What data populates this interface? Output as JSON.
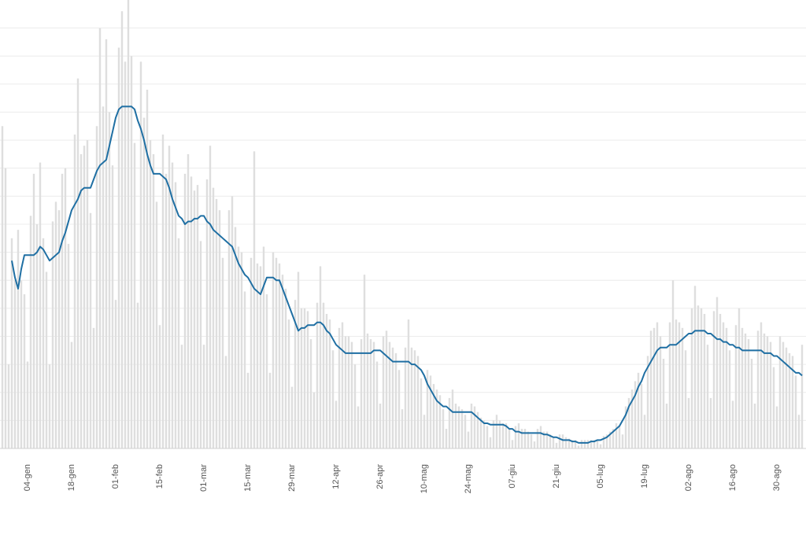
{
  "chart_data": {
    "type": "bar",
    "categories": [
      null,
      null,
      null,
      null,
      null,
      null,
      null,
      null,
      "04-gen",
      null,
      null,
      null,
      null,
      null,
      null,
      null,
      null,
      null,
      null,
      null,
      null,
      null,
      "18-gen",
      null,
      null,
      null,
      null,
      null,
      null,
      null,
      null,
      null,
      null,
      null,
      null,
      null,
      "01-feb",
      null,
      null,
      null,
      null,
      null,
      null,
      null,
      null,
      null,
      null,
      null,
      null,
      null,
      "15-feb",
      null,
      null,
      null,
      null,
      null,
      null,
      null,
      null,
      null,
      null,
      null,
      null,
      null,
      "01-mar",
      null,
      null,
      null,
      null,
      null,
      null,
      null,
      null,
      null,
      null,
      null,
      null,
      null,
      "15-mar",
      null,
      null,
      null,
      null,
      null,
      null,
      null,
      null,
      null,
      null,
      null,
      null,
      null,
      "29-mar",
      null,
      null,
      null,
      null,
      null,
      null,
      null,
      null,
      null,
      null,
      null,
      null,
      null,
      "12-apr",
      null,
      null,
      null,
      null,
      null,
      null,
      null,
      null,
      null,
      null,
      null,
      null,
      null,
      "26-apr",
      null,
      null,
      null,
      null,
      null,
      null,
      null,
      null,
      null,
      null,
      null,
      null,
      null,
      "10-mag",
      null,
      null,
      null,
      null,
      null,
      null,
      null,
      null,
      null,
      null,
      null,
      null,
      null,
      "24-mag",
      null,
      null,
      null,
      null,
      null,
      null,
      null,
      null,
      null,
      null,
      null,
      null,
      null,
      "07-giu",
      null,
      null,
      null,
      null,
      null,
      null,
      null,
      null,
      null,
      null,
      null,
      null,
      null,
      "21-giu",
      null,
      null,
      null,
      null,
      null,
      null,
      null,
      null,
      null,
      null,
      null,
      null,
      null,
      "05-lug",
      null,
      null,
      null,
      null,
      null,
      null,
      null,
      null,
      null,
      null,
      null,
      null,
      null,
      "19-lug",
      null,
      null,
      null,
      null,
      null,
      null,
      null,
      null,
      null,
      null,
      null,
      null,
      null,
      "02-ago",
      null,
      null,
      null,
      null,
      null,
      null,
      null,
      null,
      null,
      null,
      null,
      null,
      null,
      "16-ago",
      null,
      null,
      null,
      null,
      null,
      null,
      null,
      null,
      null,
      null,
      null,
      null,
      null,
      "30-ago",
      null,
      null,
      null,
      null,
      null,
      null,
      null,
      null
    ],
    "series": [
      {
        "type": "bar",
        "color": "#dedede",
        "values": [
          11.5,
          10.0,
          3.0,
          7.5,
          6.0,
          7.8,
          6.0,
          5.5,
          3.1,
          8.3,
          9.8,
          8.0,
          10.2,
          7.5,
          6.3,
          3.0,
          8.1,
          8.8,
          8.5,
          9.8,
          10.0,
          7.3,
          3.8,
          11.2,
          13.2,
          10.5,
          10.8,
          11.0,
          8.4,
          4.3,
          11.5,
          15.0,
          12.2,
          14.6,
          12.0,
          10.1,
          5.3,
          14.3,
          15.6,
          13.8,
          16.5,
          14.0,
          10.9,
          5.2,
          13.8,
          11.8,
          12.8,
          11.0,
          10.5,
          8.8,
          4.4,
          11.2,
          9.8,
          10.8,
          10.2,
          9.5,
          7.5,
          3.7,
          9.8,
          10.5,
          9.7,
          9.2,
          9.4,
          7.4,
          3.7,
          9.6,
          10.8,
          9.3,
          8.9,
          8.5,
          6.8,
          3.3,
          8.5,
          9.0,
          7.9,
          7.2,
          7.0,
          5.6,
          2.7,
          6.8,
          10.6,
          6.6,
          6.5,
          7.2,
          5.5,
          2.7,
          7.0,
          6.8,
          6.6,
          6.2,
          5.7,
          4.6,
          2.2,
          5.3,
          6.3,
          5.0,
          5.0,
          4.9,
          3.9,
          2.0,
          5.2,
          6.5,
          5.2,
          4.8,
          4.6,
          3.5,
          1.7,
          4.3,
          4.5,
          4.0,
          4.0,
          3.8,
          3.0,
          1.5,
          3.9,
          6.2,
          4.1,
          3.9,
          3.8,
          3.1,
          1.6,
          4.0,
          4.2,
          3.8,
          3.6,
          3.4,
          2.8,
          1.4,
          3.6,
          4.6,
          3.6,
          3.5,
          3.3,
          2.5,
          1.2,
          2.8,
          2.6,
          2.3,
          2.1,
          1.9,
          1.4,
          0.7,
          1.8,
          2.1,
          1.6,
          1.5,
          1.4,
          1.2,
          0.6,
          1.6,
          1.5,
          1.3,
          1.1,
          1.0,
          0.8,
          0.4,
          1.0,
          1.2,
          1.0,
          0.9,
          0.9,
          0.7,
          0.3,
          0.8,
          0.9,
          0.7,
          0.7,
          0.6,
          0.5,
          0.25,
          0.7,
          0.8,
          0.6,
          0.6,
          0.5,
          0.4,
          0.2,
          0.5,
          0.5,
          0.4,
          0.35,
          0.3,
          0.3,
          0.1,
          0.3,
          0.3,
          0.3,
          0.3,
          0.3,
          0.3,
          0.15,
          0.45,
          0.5,
          0.6,
          0.7,
          0.9,
          0.8,
          0.5,
          1.5,
          1.8,
          2.1,
          2.4,
          2.7,
          2.3,
          1.2,
          3.3,
          4.2,
          4.3,
          4.5,
          4.0,
          3.2,
          1.6,
          4.5,
          6.0,
          4.6,
          4.5,
          4.3,
          3.5,
          1.8,
          5.0,
          5.8,
          5.1,
          5.0,
          4.8,
          3.7,
          1.8,
          4.9,
          5.4,
          4.8,
          4.5,
          4.3,
          3.5,
          1.7,
          4.4,
          5.0,
          4.3,
          4.1,
          3.9,
          3.2,
          1.6,
          4.2,
          4.5,
          4.1,
          4.0,
          3.8,
          2.9,
          1.5,
          4.0,
          3.8,
          3.6,
          3.4,
          3.3,
          2.6,
          1.2,
          3.7
        ]
      },
      {
        "type": "line",
        "color": "#1f6fa3",
        "values": [
          null,
          null,
          null,
          6.7,
          6.1,
          5.7,
          6.4,
          6.9,
          6.9,
          6.9,
          6.9,
          7.0,
          7.2,
          7.1,
          6.9,
          6.7,
          6.8,
          6.9,
          7.0,
          7.4,
          7.7,
          8.1,
          8.5,
          8.7,
          8.9,
          9.2,
          9.3,
          9.3,
          9.3,
          9.6,
          9.9,
          10.1,
          10.2,
          10.3,
          10.8,
          11.3,
          11.8,
          12.1,
          12.2,
          12.2,
          12.2,
          12.2,
          12.1,
          11.7,
          11.4,
          11.0,
          10.5,
          10.1,
          9.8,
          9.8,
          9.8,
          9.7,
          9.6,
          9.3,
          8.9,
          8.6,
          8.3,
          8.2,
          8.0,
          8.1,
          8.1,
          8.2,
          8.2,
          8.3,
          8.3,
          8.1,
          8.0,
          7.8,
          7.7,
          7.6,
          7.5,
          7.4,
          7.3,
          7.2,
          6.9,
          6.6,
          6.4,
          6.2,
          6.1,
          5.9,
          5.7,
          5.6,
          5.5,
          5.8,
          6.1,
          6.1,
          6.1,
          6.0,
          6.0,
          5.7,
          5.4,
          5.1,
          4.8,
          4.5,
          4.2,
          4.3,
          4.3,
          4.4,
          4.4,
          4.4,
          4.5,
          4.5,
          4.4,
          4.2,
          4.1,
          3.9,
          3.7,
          3.6,
          3.5,
          3.4,
          3.4,
          3.4,
          3.4,
          3.4,
          3.4,
          3.4,
          3.4,
          3.4,
          3.5,
          3.5,
          3.5,
          3.4,
          3.3,
          3.2,
          3.1,
          3.1,
          3.1,
          3.1,
          3.1,
          3.1,
          3.0,
          3.0,
          2.9,
          2.8,
          2.6,
          2.3,
          2.1,
          1.9,
          1.7,
          1.6,
          1.5,
          1.5,
          1.4,
          1.3,
          1.3,
          1.3,
          1.3,
          1.3,
          1.3,
          1.3,
          1.2,
          1.1,
          1.0,
          0.9,
          0.9,
          0.85,
          0.85,
          0.85,
          0.85,
          0.85,
          0.8,
          0.7,
          0.7,
          0.6,
          0.6,
          0.55,
          0.55,
          0.55,
          0.55,
          0.55,
          0.55,
          0.55,
          0.5,
          0.5,
          0.45,
          0.4,
          0.4,
          0.35,
          0.3,
          0.3,
          0.3,
          0.25,
          0.25,
          0.2,
          0.2,
          0.2,
          0.2,
          0.25,
          0.25,
          0.3,
          0.3,
          0.35,
          0.4,
          0.5,
          0.6,
          0.7,
          0.8,
          1.0,
          1.2,
          1.5,
          1.7,
          1.9,
          2.2,
          2.4,
          2.7,
          2.9,
          3.1,
          3.3,
          3.5,
          3.6,
          3.6,
          3.6,
          3.7,
          3.7,
          3.7,
          3.8,
          3.9,
          4.0,
          4.1,
          4.1,
          4.2,
          4.2,
          4.2,
          4.2,
          4.1,
          4.1,
          4.0,
          3.9,
          3.9,
          3.8,
          3.8,
          3.7,
          3.7,
          3.6,
          3.6,
          3.5,
          3.5,
          3.5,
          3.5,
          3.5,
          3.5,
          3.5,
          3.4,
          3.4,
          3.4,
          3.3,
          3.3,
          3.2,
          3.1,
          3.0,
          2.9,
          2.8,
          2.7,
          2.7,
          2.6
        ]
      }
    ],
    "ylim": [
      0,
      16
    ],
    "yticks": [
      0,
      1,
      2,
      3,
      4,
      5,
      6,
      7,
      8,
      9,
      10,
      11,
      12,
      13,
      14,
      15
    ],
    "grid": true
  }
}
